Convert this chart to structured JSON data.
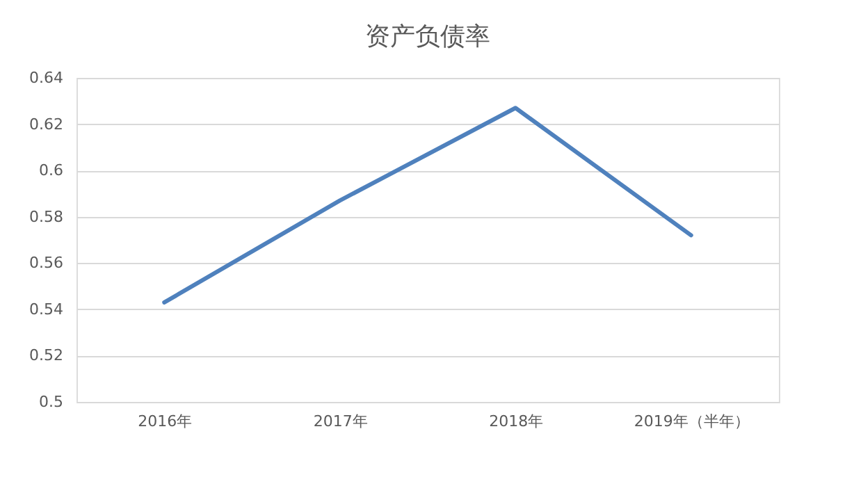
{
  "chart_data": {
    "type": "line",
    "title": "资产负债率",
    "categories": [
      "2016年",
      "2017年",
      "2018年",
      "2019年（半年）"
    ],
    "series": [
      {
        "color": "#4f81bd",
        "values": [
          0.543,
          0.587,
          0.627,
          0.572
        ]
      }
    ],
    "ylim": [
      0.5,
      0.64
    ],
    "yticks": [
      {
        "value": 0.5,
        "label": "0.5"
      },
      0.52,
      0.54,
      0.56,
      0.58,
      {
        "value": 0.6,
        "label": "0.6"
      },
      0.62,
      0.64
    ],
    "grid": "y",
    "legend": false,
    "marker": "none",
    "line_style": "solid"
  }
}
